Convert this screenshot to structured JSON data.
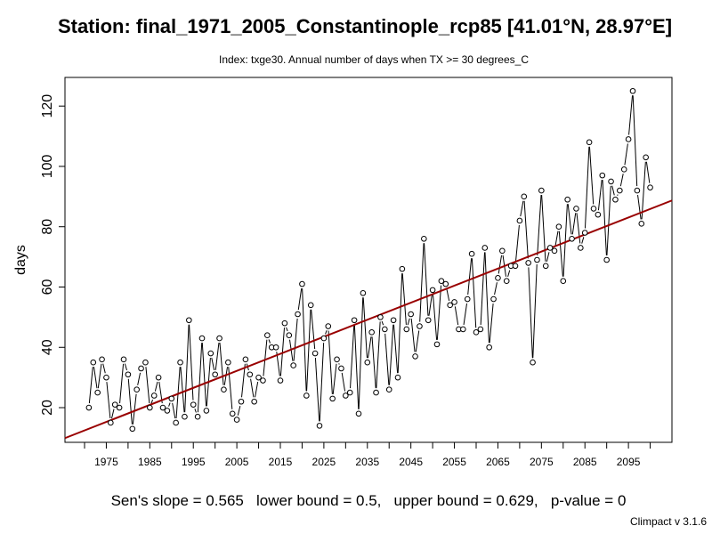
{
  "chart_data": {
    "type": "line",
    "title": "Station: final_1971_2005_Constantinople_rcp85 [41.01°N, 28.97°E]",
    "subtitle": "Index: txge30. Annual number of days when TX >= 30 degrees_C",
    "ylabel": "days",
    "xlabel": "",
    "xlim": [
      1965.5,
      2105
    ],
    "ylim": [
      8.5,
      129.5
    ],
    "x_ticks": [
      1975,
      1985,
      1995,
      2005,
      2015,
      2025,
      2035,
      2045,
      2055,
      2065,
      2075,
      2085,
      2095
    ],
    "x_tick_labels": [
      "1975",
      "1985",
      "1995",
      "2005",
      "2015",
      "2025",
      "2035",
      "2045",
      "2055",
      "2065",
      "2075",
      "2085",
      "2095"
    ],
    "x_minor_ticks": [
      1970,
      1980,
      1990,
      2000,
      2010,
      2020,
      2030,
      2040,
      2050,
      2060,
      2070,
      2080,
      2090,
      2100
    ],
    "y_ticks": [
      20,
      40,
      60,
      80,
      100,
      120
    ],
    "grid": false,
    "series": [
      {
        "color": "#000000",
        "marker": "open-circle",
        "x": [
          1971,
          1972,
          1973,
          1974,
          1975,
          1976,
          1977,
          1978,
          1979,
          1980,
          1981,
          1982,
          1983,
          1984,
          1985,
          1986,
          1987,
          1988,
          1989,
          1990,
          1991,
          1992,
          1993,
          1994,
          1995,
          1996,
          1997,
          1998,
          1999,
          2000,
          2001,
          2002,
          2003,
          2004,
          2005,
          2006,
          2007,
          2008,
          2009,
          2010,
          2011,
          2012,
          2013,
          2014,
          2015,
          2016,
          2017,
          2018,
          2019,
          2020,
          2021,
          2022,
          2023,
          2024,
          2025,
          2026,
          2027,
          2028,
          2029,
          2030,
          2031,
          2032,
          2033,
          2034,
          2035,
          2036,
          2037,
          2038,
          2039,
          2040,
          2041,
          2042,
          2043,
          2044,
          2045,
          2046,
          2047,
          2048,
          2049,
          2050,
          2051,
          2052,
          2053,
          2054,
          2055,
          2056,
          2057,
          2058,
          2059,
          2060,
          2061,
          2062,
          2063,
          2064,
          2065,
          2066,
          2067,
          2068,
          2069,
          2070,
          2071,
          2072,
          2073,
          2074,
          2075,
          2076,
          2077,
          2078,
          2079,
          2080,
          2081,
          2082,
          2083,
          2084,
          2085,
          2086,
          2087,
          2088,
          2089,
          2090,
          2091,
          2092,
          2093,
          2094,
          2095,
          2096,
          2097,
          2098,
          2099,
          2100
        ],
        "y": [
          20,
          35,
          25,
          36,
          30,
          15,
          21,
          20,
          36,
          31,
          13,
          26,
          33,
          35,
          20,
          24,
          30,
          20,
          19,
          23,
          15,
          35,
          17,
          49,
          21,
          17,
          43,
          19,
          38,
          31,
          43,
          26,
          35,
          18,
          16,
          22,
          36,
          31,
          22,
          30,
          29,
          44,
          40,
          40,
          29,
          48,
          44,
          34,
          51,
          61,
          24,
          54,
          38,
          14,
          43,
          47,
          23,
          36,
          33,
          24,
          25,
          49,
          18,
          58,
          35,
          45,
          25,
          50,
          46,
          26,
          49,
          30,
          66,
          46,
          51,
          37,
          47,
          76,
          49,
          59,
          41,
          62,
          61,
          54,
          55,
          46,
          46,
          56,
          71,
          45,
          46,
          73,
          40,
          56,
          63,
          72,
          62,
          67,
          67,
          82,
          90,
          68,
          35,
          69,
          92,
          67,
          73,
          72,
          80,
          62,
          89,
          76,
          86,
          73,
          78,
          108,
          86,
          84,
          97,
          69,
          95,
          89,
          92,
          99,
          109,
          125,
          92,
          81,
          103,
          93
        ]
      }
    ],
    "trend": {
      "color": "#990000",
      "x": [
        1965.5,
        2105
      ],
      "y": [
        9.9,
        88.7
      ]
    }
  },
  "stats_text": "Sen's slope = 0.565   lower bound = 0.5,   upper bound = 0.629,   p-value = 0",
  "credit": "Climpact v 3.1.6"
}
